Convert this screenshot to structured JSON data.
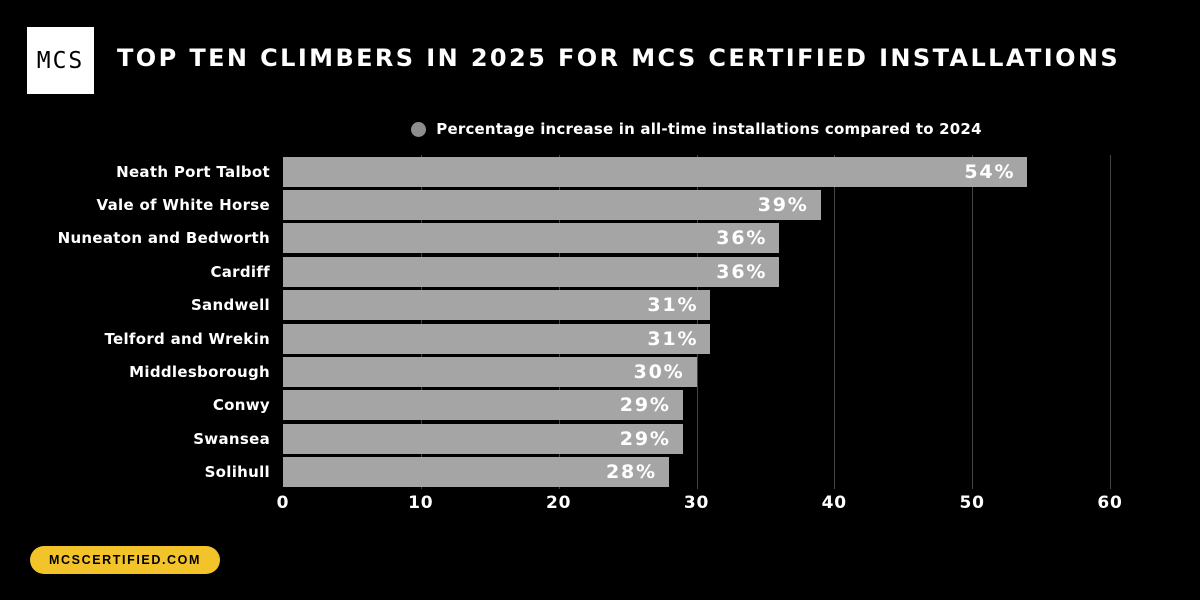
{
  "header": {
    "logo_text": "MCS",
    "title": "TOP TEN CLIMBERS IN 2025 FOR MCS CERTIFIED INSTALLATIONS"
  },
  "legend": {
    "label": "Percentage increase in all-time installations compared to 2024"
  },
  "chart_data": {
    "type": "bar",
    "orientation": "horizontal",
    "title": "TOP TEN CLIMBERS IN 2025 FOR MCS CERTIFIED INSTALLATIONS",
    "legend_entries": [
      "Percentage increase in all-time installations compared to 2024"
    ],
    "legend_position": "top-center",
    "categories": [
      "Neath Port Talbot",
      "Vale of White Horse",
      "Nuneaton and Bedworth",
      "Cardiff",
      "Sandwell",
      "Telford and Wrekin",
      "Middlesborough",
      "Conwy",
      "Swansea",
      "Solihull"
    ],
    "values": [
      54,
      39,
      36,
      36,
      31,
      31,
      30,
      29,
      29,
      28
    ],
    "value_labels": [
      "54%",
      "39%",
      "36%",
      "36%",
      "31%",
      "31%",
      "30%",
      "29%",
      "29%",
      "28%"
    ],
    "xlabel": "",
    "ylabel": "",
    "xlim": [
      0,
      60
    ],
    "x_ticks": [
      0,
      10,
      20,
      30,
      40,
      50,
      60
    ],
    "grid": "vertical gridlines at 10,20,30,40,50,60 drawn behind bars",
    "colors": {
      "background": "#000000",
      "bar": "#a5a5a5",
      "legend_marker": "#8e8e8e",
      "gridline": "#454545",
      "text": "#ffffff"
    }
  },
  "footer": {
    "website": "MCSCERTIFIED.COM",
    "badge_color": "#f2c42a"
  }
}
